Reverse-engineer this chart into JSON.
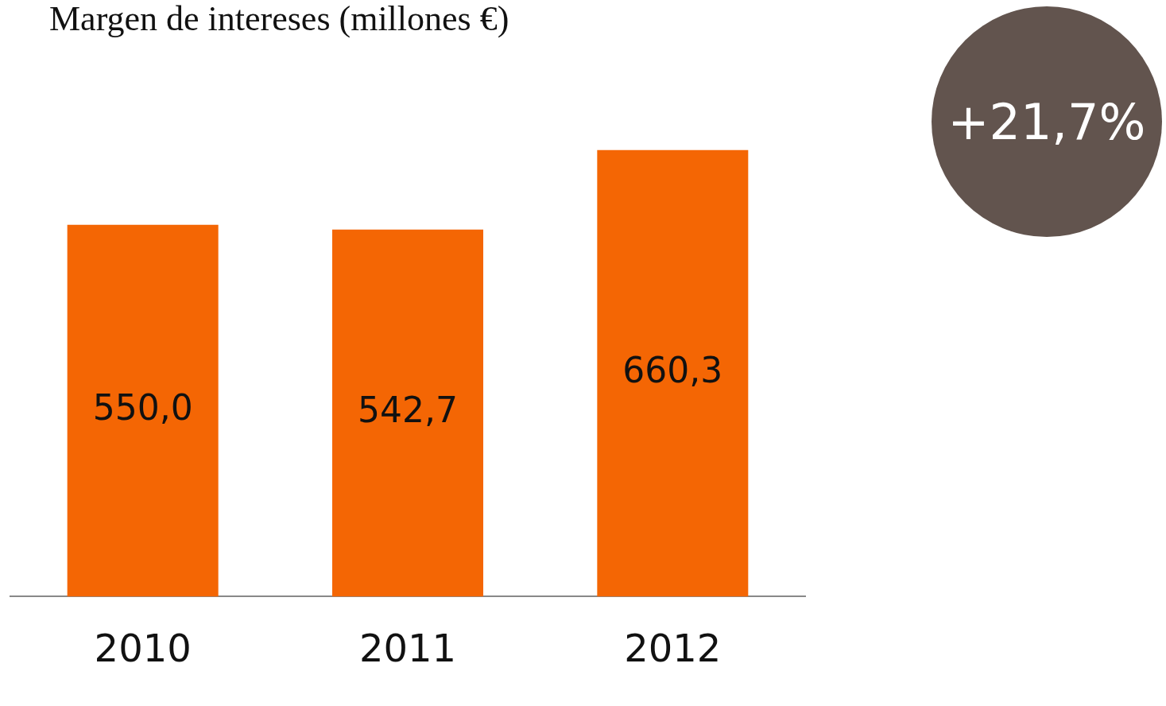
{
  "chart_data": {
    "type": "bar",
    "title": "Margen de intereses (millones €)",
    "categories": [
      "2010",
      "2011",
      "2012"
    ],
    "values": [
      550.0,
      542.7,
      660.3
    ],
    "value_labels": [
      "550,0",
      "542,7",
      "660,3"
    ],
    "color": "#f46604",
    "tick_labels": "x",
    "annotations": [
      "+21,7%"
    ]
  }
}
